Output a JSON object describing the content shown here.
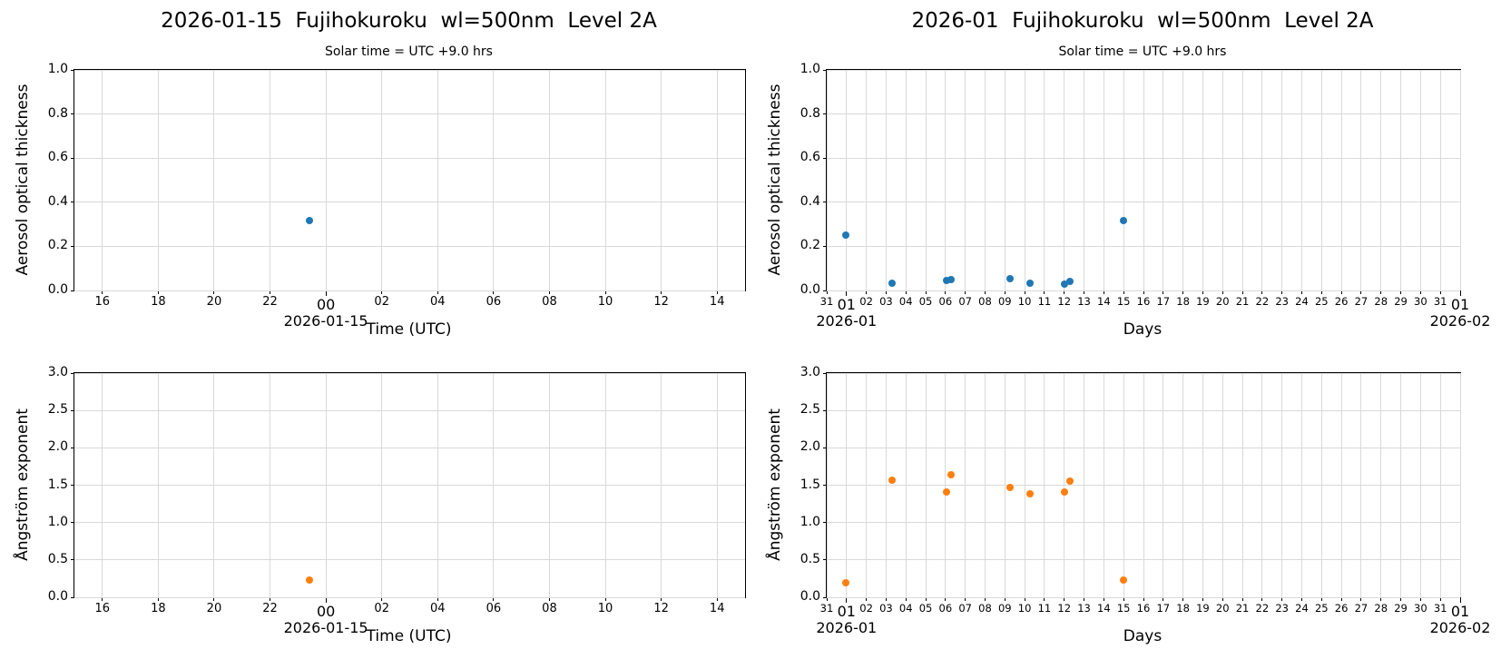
{
  "figure": {
    "background": "#ffffff"
  },
  "chart_data": [
    {
      "id": "aot-daily",
      "type": "scatter",
      "title": "2026-01-15  Fujihokuroku  wl=500nm  Level 2A",
      "subtitle": "Solar time = UTC +9.0 hrs",
      "xlabel": "Time (UTC)",
      "ylabel": "Aerosol optical thickness",
      "xlim": [
        15,
        39
      ],
      "ylim": [
        0,
        1
      ],
      "grid": true,
      "legend": false,
      "color": "#1f77b4",
      "xticks": [
        {
          "v": 16,
          "l": "16"
        },
        {
          "v": 18,
          "l": "18"
        },
        {
          "v": 20,
          "l": "20"
        },
        {
          "v": 22,
          "l": "22"
        },
        {
          "v": 24,
          "l": "00",
          "major": true,
          "sub": "2026-01-15"
        },
        {
          "v": 26,
          "l": "02"
        },
        {
          "v": 28,
          "l": "04"
        },
        {
          "v": 30,
          "l": "06"
        },
        {
          "v": 32,
          "l": "08"
        },
        {
          "v": 34,
          "l": "10"
        },
        {
          "v": 36,
          "l": "12"
        },
        {
          "v": 38,
          "l": "14"
        }
      ],
      "yticks": [
        {
          "v": 0.0,
          "l": "0.0"
        },
        {
          "v": 0.2,
          "l": "0.2"
        },
        {
          "v": 0.4,
          "l": "0.4"
        },
        {
          "v": 0.6,
          "l": "0.6"
        },
        {
          "v": 0.8,
          "l": "0.8"
        },
        {
          "v": 1.0,
          "l": "1.0"
        }
      ],
      "points": [
        [
          23.4,
          0.315
        ]
      ]
    },
    {
      "id": "aot-monthly",
      "type": "scatter",
      "title": "2026-01  Fujihokuroku  wl=500nm  Level 2A",
      "subtitle": "Solar time = UTC +9.0 hrs",
      "xlabel": "Days",
      "ylabel": "Aerosol optical thickness",
      "xlim": [
        0,
        32
      ],
      "ylim": [
        0,
        1
      ],
      "grid": true,
      "legend": false,
      "color": "#1f77b4",
      "xticks": [
        {
          "v": 0,
          "l": "31",
          "small": true
        },
        {
          "v": 1,
          "l": "01",
          "major": true,
          "sub": "2026-01"
        },
        {
          "v": 2,
          "l": "02",
          "small": true
        },
        {
          "v": 3,
          "l": "03",
          "small": true
        },
        {
          "v": 4,
          "l": "04",
          "small": true
        },
        {
          "v": 5,
          "l": "05",
          "small": true
        },
        {
          "v": 6,
          "l": "06",
          "small": true
        },
        {
          "v": 7,
          "l": "07",
          "small": true
        },
        {
          "v": 8,
          "l": "08",
          "small": true
        },
        {
          "v": 9,
          "l": "09",
          "small": true
        },
        {
          "v": 10,
          "l": "10",
          "small": true
        },
        {
          "v": 11,
          "l": "11",
          "small": true
        },
        {
          "v": 12,
          "l": "12",
          "small": true
        },
        {
          "v": 13,
          "l": "13",
          "small": true
        },
        {
          "v": 14,
          "l": "14",
          "small": true
        },
        {
          "v": 15,
          "l": "15",
          "small": true
        },
        {
          "v": 16,
          "l": "16",
          "small": true
        },
        {
          "v": 17,
          "l": "17",
          "small": true
        },
        {
          "v": 18,
          "l": "18",
          "small": true
        },
        {
          "v": 19,
          "l": "19",
          "small": true
        },
        {
          "v": 20,
          "l": "20",
          "small": true
        },
        {
          "v": 21,
          "l": "21",
          "small": true
        },
        {
          "v": 22,
          "l": "22",
          "small": true
        },
        {
          "v": 23,
          "l": "23",
          "small": true
        },
        {
          "v": 24,
          "l": "24",
          "small": true
        },
        {
          "v": 25,
          "l": "25",
          "small": true
        },
        {
          "v": 26,
          "l": "26",
          "small": true
        },
        {
          "v": 27,
          "l": "27",
          "small": true
        },
        {
          "v": 28,
          "l": "28",
          "small": true
        },
        {
          "v": 29,
          "l": "29",
          "small": true
        },
        {
          "v": 30,
          "l": "30",
          "small": true
        },
        {
          "v": 31,
          "l": "31",
          "small": true
        },
        {
          "v": 32,
          "l": "01",
          "major": true,
          "sub": "2026-02"
        }
      ],
      "yticks": [
        {
          "v": 0.0,
          "l": "0.0"
        },
        {
          "v": 0.2,
          "l": "0.2"
        },
        {
          "v": 0.4,
          "l": "0.4"
        },
        {
          "v": 0.6,
          "l": "0.6"
        },
        {
          "v": 0.8,
          "l": "0.8"
        },
        {
          "v": 1.0,
          "l": "1.0"
        }
      ],
      "points": [
        [
          0.98,
          0.253
        ],
        [
          3.28,
          0.033
        ],
        [
          6.05,
          0.047
        ],
        [
          6.28,
          0.049
        ],
        [
          9.25,
          0.055
        ],
        [
          10.25,
          0.032
        ],
        [
          12.02,
          0.03
        ],
        [
          12.28,
          0.042
        ],
        [
          14.97,
          0.315
        ]
      ]
    },
    {
      "id": "angstrom-daily",
      "type": "scatter",
      "title": "",
      "subtitle": "",
      "xlabel": "Time (UTC)",
      "ylabel": "Ångström exponent",
      "xlim": [
        15,
        39
      ],
      "ylim": [
        0,
        3
      ],
      "grid": true,
      "legend": false,
      "color": "#ff7f0e",
      "xticks": [
        {
          "v": 16,
          "l": "16"
        },
        {
          "v": 18,
          "l": "18"
        },
        {
          "v": 20,
          "l": "20"
        },
        {
          "v": 22,
          "l": "22"
        },
        {
          "v": 24,
          "l": "00",
          "major": true,
          "sub": "2026-01-15"
        },
        {
          "v": 26,
          "l": "02"
        },
        {
          "v": 28,
          "l": "04"
        },
        {
          "v": 30,
          "l": "06"
        },
        {
          "v": 32,
          "l": "08"
        },
        {
          "v": 34,
          "l": "10"
        },
        {
          "v": 36,
          "l": "12"
        },
        {
          "v": 38,
          "l": "14"
        }
      ],
      "yticks": [
        {
          "v": 0.0,
          "l": "0.0"
        },
        {
          "v": 0.5,
          "l": "0.5"
        },
        {
          "v": 1.0,
          "l": "1.0"
        },
        {
          "v": 1.5,
          "l": "1.5"
        },
        {
          "v": 2.0,
          "l": "2.0"
        },
        {
          "v": 2.5,
          "l": "2.5"
        },
        {
          "v": 3.0,
          "l": "3.0"
        }
      ],
      "points": [
        [
          23.4,
          0.23
        ]
      ]
    },
    {
      "id": "angstrom-monthly",
      "type": "scatter",
      "title": "",
      "subtitle": "",
      "xlabel": "Days",
      "ylabel": "Ångström exponent",
      "xlim": [
        0,
        32
      ],
      "ylim": [
        0,
        3
      ],
      "grid": true,
      "legend": false,
      "color": "#ff7f0e",
      "xticks": [
        {
          "v": 0,
          "l": "31",
          "small": true
        },
        {
          "v": 1,
          "l": "01",
          "major": true,
          "sub": "2026-01"
        },
        {
          "v": 2,
          "l": "02",
          "small": true
        },
        {
          "v": 3,
          "l": "03",
          "small": true
        },
        {
          "v": 4,
          "l": "04",
          "small": true
        },
        {
          "v": 5,
          "l": "05",
          "small": true
        },
        {
          "v": 6,
          "l": "06",
          "small": true
        },
        {
          "v": 7,
          "l": "07",
          "small": true
        },
        {
          "v": 8,
          "l": "08",
          "small": true
        },
        {
          "v": 9,
          "l": "09",
          "small": true
        },
        {
          "v": 10,
          "l": "10",
          "small": true
        },
        {
          "v": 11,
          "l": "11",
          "small": true
        },
        {
          "v": 12,
          "l": "12",
          "small": true
        },
        {
          "v": 13,
          "l": "13",
          "small": true
        },
        {
          "v": 14,
          "l": "14",
          "small": true
        },
        {
          "v": 15,
          "l": "15",
          "small": true
        },
        {
          "v": 16,
          "l": "16",
          "small": true
        },
        {
          "v": 17,
          "l": "17",
          "small": true
        },
        {
          "v": 18,
          "l": "18",
          "small": true
        },
        {
          "v": 19,
          "l": "19",
          "small": true
        },
        {
          "v": 20,
          "l": "20",
          "small": true
        },
        {
          "v": 21,
          "l": "21",
          "small": true
        },
        {
          "v": 22,
          "l": "22",
          "small": true
        },
        {
          "v": 23,
          "l": "23",
          "small": true
        },
        {
          "v": 24,
          "l": "24",
          "small": true
        },
        {
          "v": 25,
          "l": "25",
          "small": true
        },
        {
          "v": 26,
          "l": "26",
          "small": true
        },
        {
          "v": 27,
          "l": "27",
          "small": true
        },
        {
          "v": 28,
          "l": "28",
          "small": true
        },
        {
          "v": 29,
          "l": "29",
          "small": true
        },
        {
          "v": 30,
          "l": "30",
          "small": true
        },
        {
          "v": 31,
          "l": "31",
          "small": true
        },
        {
          "v": 32,
          "l": "01",
          "major": true,
          "sub": "2026-02"
        }
      ],
      "yticks": [
        {
          "v": 0.0,
          "l": "0.0"
        },
        {
          "v": 0.5,
          "l": "0.5"
        },
        {
          "v": 1.0,
          "l": "1.0"
        },
        {
          "v": 1.5,
          "l": "1.5"
        },
        {
          "v": 2.0,
          "l": "2.0"
        },
        {
          "v": 2.5,
          "l": "2.5"
        },
        {
          "v": 3.0,
          "l": "3.0"
        }
      ],
      "points": [
        [
          0.98,
          0.19
        ],
        [
          3.28,
          1.57
        ],
        [
          6.05,
          1.41
        ],
        [
          6.28,
          1.64
        ],
        [
          9.25,
          1.47
        ],
        [
          10.25,
          1.38
        ],
        [
          12.02,
          1.41
        ],
        [
          12.28,
          1.55
        ],
        [
          14.97,
          0.23
        ]
      ]
    }
  ]
}
